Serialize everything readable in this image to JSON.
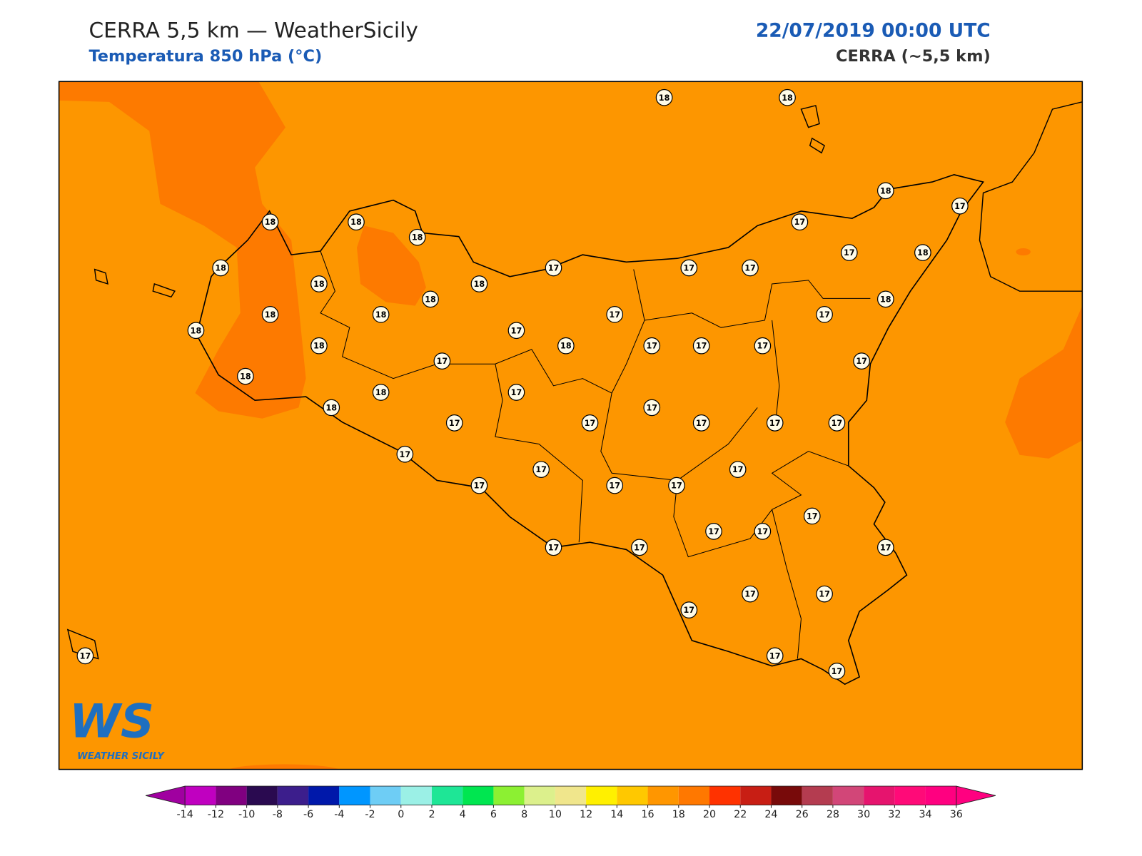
{
  "header": {
    "title": "CERRA 5,5 km — WeatherSicily",
    "subtitle": "Temperatura 850 hPa (°C)",
    "date": "22/07/2019 00:00 UTC",
    "source": "CERRA (~5,5 km)"
  },
  "map": {
    "fill_color": "#fd9600",
    "warm_color": "#fd7a00",
    "stations": [
      18,
      18,
      18,
      17,
      18,
      18,
      18,
      17,
      17,
      18,
      18,
      17,
      17,
      17,
      18,
      18,
      18,
      18,
      18,
      18,
      17,
      17,
      18,
      17,
      18,
      18,
      17,
      17,
      17,
      17,
      17,
      18,
      18,
      17,
      17,
      18,
      17,
      17,
      17,
      17,
      17,
      17,
      17,
      17,
      17,
      17,
      17,
      17,
      17,
      17,
      17,
      17,
      17,
      17,
      17,
      17,
      17,
      17,
      17
    ]
  },
  "logo": {
    "mark": "WS",
    "text": "WEATHER SICILY"
  },
  "colorbar": {
    "ticks": [
      -14,
      -12,
      -10,
      -8,
      -6,
      -4,
      -2,
      0,
      2,
      4,
      6,
      8,
      10,
      12,
      14,
      16,
      18,
      20,
      22,
      24,
      26,
      28,
      30,
      32,
      34,
      36
    ],
    "colors": [
      "#c000c0",
      "#800080",
      "#2a0a50",
      "#3c1e8c",
      "#0018aa",
      "#0096ff",
      "#6ecdf5",
      "#9bf0e6",
      "#1ee696",
      "#00e650",
      "#8cf032",
      "#dcf08c",
      "#f0e68c",
      "#fff000",
      "#ffc800",
      "#ff9600",
      "#ff7800",
      "#ff3200",
      "#c81e14",
      "#780a0a",
      "#b43c50",
      "#d24678",
      "#e6146e",
      "#ff0a78",
      "#ff0080"
    ],
    "under_color": "#a000a0",
    "over_color": "#ff0080"
  }
}
